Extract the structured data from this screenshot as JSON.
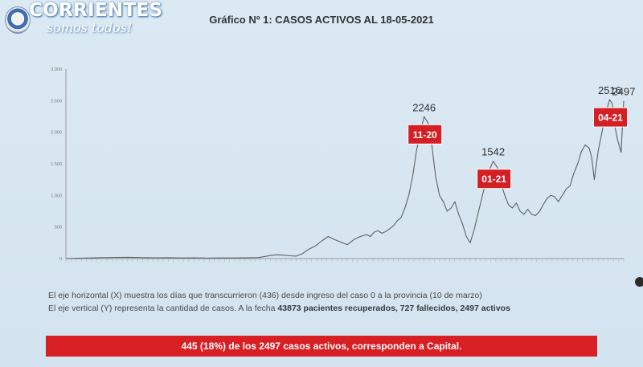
{
  "logo": {
    "wordmark": "CORRIENTES",
    "tagline": "somos todos!"
  },
  "title": "Gráfico Nº 1: CASOS ACTIVOS AL 18-05-2021",
  "chart_data": {
    "type": "line",
    "title": "Gráfico Nº 1: CASOS ACTIVOS AL 18-05-2021",
    "xlabel": "",
    "ylabel": "",
    "x_range": [
      0,
      436
    ],
    "ylim": [
      0,
      3000
    ],
    "yticks": [
      0,
      500,
      1000,
      1500,
      2000,
      2500,
      3000
    ],
    "ytick_labels": [
      "0",
      "500",
      "1.000",
      "1.500",
      "2.000",
      "2.500",
      "3.000"
    ],
    "grid": false,
    "series": [
      {
        "color": "#606060",
        "points": [
          [
            0,
            0
          ],
          [
            10,
            5
          ],
          [
            20,
            10
          ],
          [
            30,
            15
          ],
          [
            40,
            18
          ],
          [
            50,
            20
          ],
          [
            60,
            15
          ],
          [
            70,
            12
          ],
          [
            80,
            14
          ],
          [
            90,
            10
          ],
          [
            100,
            12
          ],
          [
            110,
            8
          ],
          [
            120,
            10
          ],
          [
            130,
            10
          ],
          [
            140,
            12
          ],
          [
            150,
            15
          ],
          [
            155,
            30
          ],
          [
            160,
            50
          ],
          [
            165,
            60
          ],
          [
            170,
            55
          ],
          [
            175,
            45
          ],
          [
            180,
            40
          ],
          [
            185,
            80
          ],
          [
            190,
            150
          ],
          [
            195,
            200
          ],
          [
            200,
            280
          ],
          [
            205,
            350
          ],
          [
            210,
            300
          ],
          [
            215,
            260
          ],
          [
            220,
            220
          ],
          [
            225,
            300
          ],
          [
            230,
            350
          ],
          [
            235,
            380
          ],
          [
            238,
            350
          ],
          [
            241,
            420
          ],
          [
            244,
            440
          ],
          [
            247,
            400
          ],
          [
            250,
            430
          ],
          [
            253,
            470
          ],
          [
            256,
            520
          ],
          [
            259,
            600
          ],
          [
            262,
            650
          ],
          [
            265,
            800
          ],
          [
            268,
            1000
          ],
          [
            271,
            1300
          ],
          [
            274,
            1700
          ],
          [
            277,
            2000
          ],
          [
            280,
            2246
          ],
          [
            283,
            2150
          ],
          [
            286,
            1800
          ],
          [
            289,
            1300
          ],
          [
            292,
            1000
          ],
          [
            295,
            900
          ],
          [
            298,
            750
          ],
          [
            301,
            800
          ],
          [
            304,
            900
          ],
          [
            307,
            700
          ],
          [
            310,
            550
          ],
          [
            313,
            350
          ],
          [
            316,
            250
          ],
          [
            319,
            450
          ],
          [
            322,
            700
          ],
          [
            325,
            950
          ],
          [
            328,
            1200
          ],
          [
            331,
            1400
          ],
          [
            334,
            1542
          ],
          [
            337,
            1450
          ],
          [
            340,
            1200
          ],
          [
            343,
            1000
          ],
          [
            346,
            850
          ],
          [
            349,
            800
          ],
          [
            352,
            880
          ],
          [
            355,
            750
          ],
          [
            358,
            700
          ],
          [
            361,
            780
          ],
          [
            364,
            700
          ],
          [
            367,
            680
          ],
          [
            370,
            740
          ],
          [
            373,
            850
          ],
          [
            376,
            950
          ],
          [
            379,
            1000
          ],
          [
            382,
            980
          ],
          [
            385,
            900
          ],
          [
            388,
            1000
          ],
          [
            391,
            1100
          ],
          [
            394,
            1150
          ],
          [
            397,
            1350
          ],
          [
            400,
            1500
          ],
          [
            403,
            1700
          ],
          [
            406,
            1800
          ],
          [
            409,
            1750
          ],
          [
            411,
            1600
          ],
          [
            413,
            1250
          ],
          [
            416,
            1700
          ],
          [
            419,
            2000
          ],
          [
            422,
            2300
          ],
          [
            425,
            2516
          ],
          [
            427,
            2450
          ],
          [
            429,
            2100
          ],
          [
            431,
            1900
          ],
          [
            433,
            1750
          ],
          [
            434,
            1680
          ],
          [
            435,
            2100
          ],
          [
            436,
            2497
          ]
        ]
      }
    ],
    "annotations": [
      {
        "label": "11-20",
        "value": "2246",
        "x": 280,
        "y": 2246,
        "box_color": "#d41f24"
      },
      {
        "label": "01-21",
        "value": "1542",
        "x": 334,
        "y": 1542,
        "box_color": "#d41f24"
      },
      {
        "label": "04-21",
        "value": "2516",
        "x": 425,
        "y": 2516,
        "box_color": "#d41f24"
      },
      {
        "label": "",
        "value": "2497",
        "x": 436,
        "y": 2497
      }
    ]
  },
  "notes": {
    "line1": "El eje horizontal (X) muestra los días que transcurrieron (436) desde ingreso del caso 0 a la provincia (10 de marzo)",
    "line2_prefix": "El eje vertical (Y) representa la cantidad de casos. A la fecha ",
    "line2_bold": "43873 pacientes recuperados, 727 fallecidos, 2497 activos"
  },
  "banner": "445 (18%) de los 2497 casos activos, corresponden a Capital."
}
